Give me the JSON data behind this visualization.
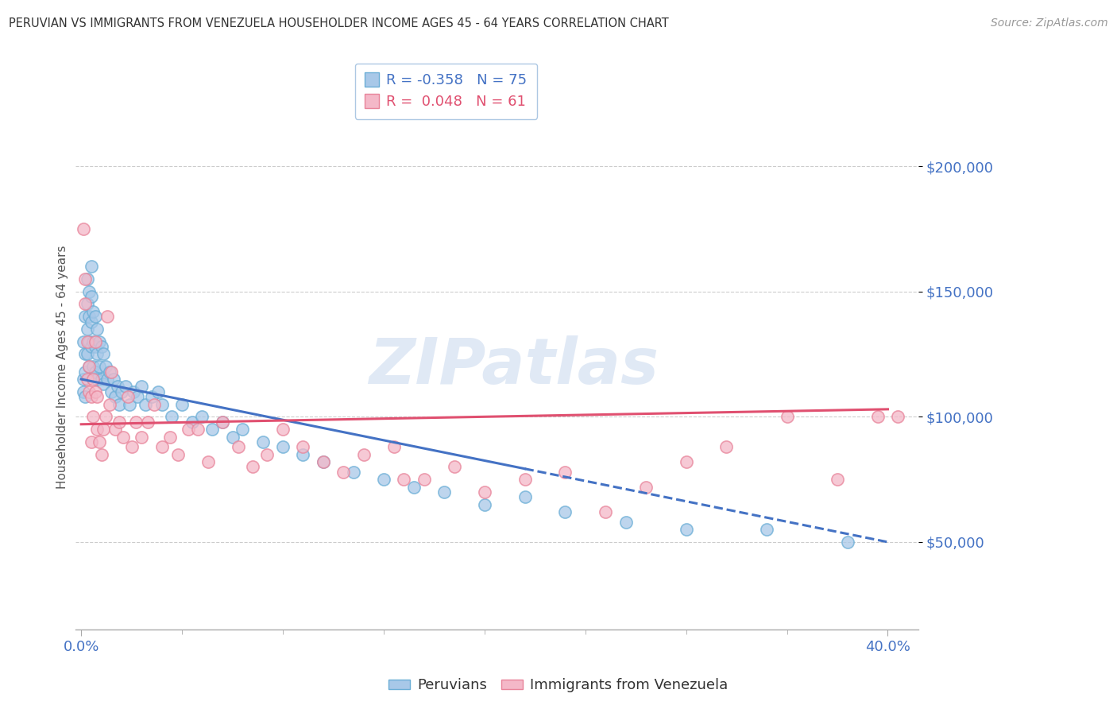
{
  "title": "PERUVIAN VS IMMIGRANTS FROM VENEZUELA HOUSEHOLDER INCOME AGES 45 - 64 YEARS CORRELATION CHART",
  "source": "Source: ZipAtlas.com",
  "ylabel": "Householder Income Ages 45 - 64 years",
  "watermark": "ZIPatlas",
  "legend_series1_label": "Peruvians",
  "legend_series1_R": -0.358,
  "legend_series1_N": 75,
  "legend_series2_label": "Immigrants from Venezuela",
  "legend_series2_R": 0.048,
  "legend_series2_N": 61,
  "blue_fill": "#a8c8e8",
  "blue_edge": "#6baed6",
  "pink_fill": "#f4b8c8",
  "pink_edge": "#e8849a",
  "blue_line": "#4472c4",
  "pink_line": "#e05070",
  "yticks": [
    50000,
    100000,
    150000,
    200000
  ],
  "ylim": [
    15000,
    225000
  ],
  "xlim": [
    -0.003,
    0.415
  ],
  "blue_trend_x0": 0.0,
  "blue_trend_y0": 115000,
  "blue_trend_x1": 0.4,
  "blue_trend_y1": 50000,
  "pink_trend_x0": 0.0,
  "pink_trend_y0": 97000,
  "pink_trend_x1": 0.4,
  "pink_trend_y1": 103000,
  "peruvians_x": [
    0.001,
    0.001,
    0.001,
    0.002,
    0.002,
    0.002,
    0.002,
    0.003,
    0.003,
    0.003,
    0.003,
    0.004,
    0.004,
    0.004,
    0.004,
    0.005,
    0.005,
    0.005,
    0.005,
    0.006,
    0.006,
    0.006,
    0.007,
    0.007,
    0.007,
    0.008,
    0.008,
    0.008,
    0.009,
    0.009,
    0.01,
    0.01,
    0.011,
    0.011,
    0.012,
    0.013,
    0.014,
    0.015,
    0.016,
    0.017,
    0.018,
    0.019,
    0.02,
    0.022,
    0.024,
    0.026,
    0.028,
    0.03,
    0.032,
    0.035,
    0.038,
    0.04,
    0.045,
    0.05,
    0.055,
    0.06,
    0.065,
    0.07,
    0.075,
    0.08,
    0.09,
    0.1,
    0.11,
    0.12,
    0.135,
    0.15,
    0.165,
    0.18,
    0.2,
    0.22,
    0.24,
    0.27,
    0.3,
    0.34,
    0.38
  ],
  "peruvians_y": [
    115000,
    130000,
    110000,
    140000,
    125000,
    118000,
    108000,
    155000,
    145000,
    135000,
    125000,
    150000,
    140000,
    130000,
    120000,
    160000,
    148000,
    138000,
    128000,
    142000,
    130000,
    120000,
    140000,
    128000,
    118000,
    135000,
    125000,
    115000,
    130000,
    120000,
    128000,
    115000,
    125000,
    113000,
    120000,
    115000,
    118000,
    110000,
    115000,
    108000,
    112000,
    105000,
    110000,
    112000,
    105000,
    110000,
    108000,
    112000,
    105000,
    108000,
    110000,
    105000,
    100000,
    105000,
    98000,
    100000,
    95000,
    98000,
    92000,
    95000,
    90000,
    88000,
    85000,
    82000,
    78000,
    75000,
    72000,
    70000,
    65000,
    68000,
    62000,
    58000,
    55000,
    55000,
    50000
  ],
  "venezuela_x": [
    0.001,
    0.002,
    0.002,
    0.003,
    0.003,
    0.004,
    0.004,
    0.005,
    0.005,
    0.006,
    0.006,
    0.007,
    0.007,
    0.008,
    0.008,
    0.009,
    0.01,
    0.011,
    0.012,
    0.013,
    0.014,
    0.015,
    0.017,
    0.019,
    0.021,
    0.023,
    0.025,
    0.027,
    0.03,
    0.033,
    0.036,
    0.04,
    0.044,
    0.048,
    0.053,
    0.058,
    0.063,
    0.07,
    0.078,
    0.085,
    0.092,
    0.1,
    0.11,
    0.12,
    0.13,
    0.14,
    0.155,
    0.17,
    0.185,
    0.2,
    0.22,
    0.24,
    0.26,
    0.28,
    0.3,
    0.32,
    0.35,
    0.375,
    0.395,
    0.405,
    0.16
  ],
  "venezuela_y": [
    175000,
    155000,
    145000,
    130000,
    115000,
    120000,
    110000,
    108000,
    90000,
    115000,
    100000,
    130000,
    110000,
    108000,
    95000,
    90000,
    85000,
    95000,
    100000,
    140000,
    105000,
    118000,
    95000,
    98000,
    92000,
    108000,
    88000,
    98000,
    92000,
    98000,
    105000,
    88000,
    92000,
    85000,
    95000,
    95000,
    82000,
    98000,
    88000,
    80000,
    85000,
    95000,
    88000,
    82000,
    78000,
    85000,
    88000,
    75000,
    80000,
    70000,
    75000,
    78000,
    62000,
    72000,
    82000,
    88000,
    100000,
    75000,
    100000,
    100000,
    75000
  ]
}
